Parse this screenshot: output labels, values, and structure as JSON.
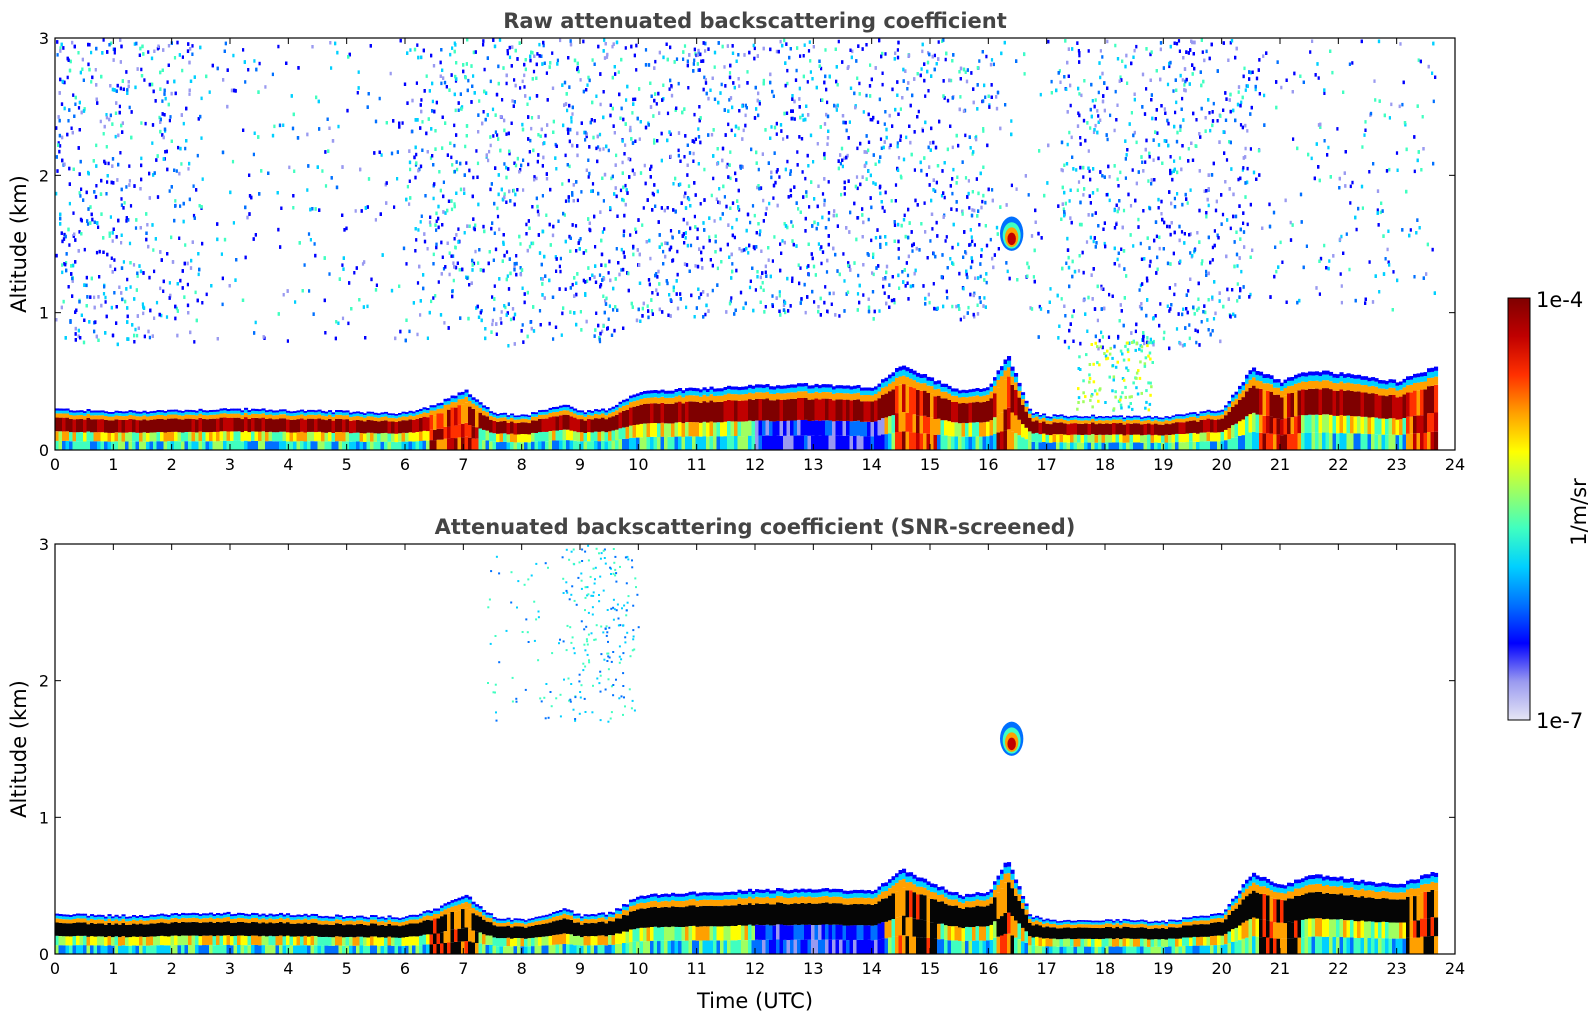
{
  "chart_data": [
    {
      "type": "heatmap",
      "title": "Raw attenuated backscattering coefficient",
      "xlabel": "",
      "ylabel": "Altitude (km)",
      "xlim": [
        0,
        24
      ],
      "ylim": [
        0,
        3
      ],
      "xticks": [
        "0",
        "1",
        "2",
        "3",
        "4",
        "5",
        "6",
        "7",
        "8",
        "9",
        "10",
        "11",
        "12",
        "13",
        "14",
        "15",
        "16",
        "17",
        "18",
        "19",
        "20",
        "21",
        "22",
        "23",
        "24"
      ],
      "yticks": [
        "0",
        "1",
        "2",
        "3"
      ],
      "screened": false,
      "layer_top_km": [
        [
          0,
          0.3
        ],
        [
          1,
          0.28
        ],
        [
          2,
          0.29
        ],
        [
          3,
          0.3
        ],
        [
          4,
          0.29
        ],
        [
          5,
          0.28
        ],
        [
          6,
          0.27
        ],
        [
          6.5,
          0.33
        ],
        [
          7,
          0.44
        ],
        [
          7.5,
          0.27
        ],
        [
          8,
          0.25
        ],
        [
          8.7,
          0.33
        ],
        [
          9,
          0.28
        ],
        [
          9.5,
          0.3
        ],
        [
          10,
          0.43
        ],
        [
          11,
          0.45
        ],
        [
          12,
          0.47
        ],
        [
          13,
          0.48
        ],
        [
          14,
          0.46
        ],
        [
          14.5,
          0.62
        ],
        [
          15,
          0.52
        ],
        [
          15.5,
          0.43
        ],
        [
          16,
          0.46
        ],
        [
          16.3,
          0.7
        ],
        [
          16.7,
          0.28
        ],
        [
          17,
          0.25
        ],
        [
          18,
          0.25
        ],
        [
          19,
          0.24
        ],
        [
          20,
          0.3
        ],
        [
          20.5,
          0.6
        ],
        [
          21,
          0.5
        ],
        [
          21.5,
          0.58
        ],
        [
          22,
          0.56
        ],
        [
          23,
          0.5
        ],
        [
          23.6,
          0.6
        ]
      ],
      "features": [
        {
          "label": "elevated cloud",
          "t": [
            16.2,
            16.6
          ],
          "alt_km": [
            1.45,
            1.7
          ]
        },
        {
          "label": "aerosol plumes",
          "t": [
            17.5,
            18.8
          ],
          "alt_km": [
            0.3,
            0.8
          ]
        }
      ]
    },
    {
      "type": "heatmap",
      "title": "Attenuated backscattering coefficient (SNR-screened)",
      "xlabel": "Time (UTC)",
      "ylabel": "Altitude (km)",
      "xlim": [
        0,
        24
      ],
      "ylim": [
        0,
        3
      ],
      "xticks": [
        "0",
        "1",
        "2",
        "3",
        "4",
        "5",
        "6",
        "7",
        "8",
        "9",
        "10",
        "11",
        "12",
        "13",
        "14",
        "15",
        "16",
        "17",
        "18",
        "19",
        "20",
        "21",
        "22",
        "23",
        "24"
      ],
      "yticks": [
        "0",
        "1",
        "2",
        "3"
      ],
      "screened": true,
      "layer_top_km": [
        [
          0,
          0.3
        ],
        [
          1,
          0.28
        ],
        [
          2,
          0.29
        ],
        [
          3,
          0.3
        ],
        [
          4,
          0.29
        ],
        [
          5,
          0.28
        ],
        [
          6,
          0.27
        ],
        [
          6.5,
          0.33
        ],
        [
          7,
          0.44
        ],
        [
          7.5,
          0.27
        ],
        [
          8,
          0.25
        ],
        [
          8.7,
          0.33
        ],
        [
          9,
          0.28
        ],
        [
          9.5,
          0.3
        ],
        [
          10,
          0.43
        ],
        [
          11,
          0.45
        ],
        [
          12,
          0.47
        ],
        [
          13,
          0.48
        ],
        [
          14,
          0.46
        ],
        [
          14.5,
          0.62
        ],
        [
          15,
          0.52
        ],
        [
          15.5,
          0.43
        ],
        [
          16,
          0.46
        ],
        [
          16.3,
          0.7
        ],
        [
          16.7,
          0.28
        ],
        [
          17,
          0.25
        ],
        [
          18,
          0.25
        ],
        [
          19,
          0.24
        ],
        [
          20,
          0.3
        ],
        [
          20.5,
          0.6
        ],
        [
          21,
          0.5
        ],
        [
          21.5,
          0.58
        ],
        [
          22,
          0.56
        ],
        [
          23,
          0.5
        ],
        [
          23.6,
          0.6
        ]
      ],
      "features": [
        {
          "label": "elevated cloud",
          "t": [
            16.2,
            16.6
          ],
          "alt_km": [
            1.45,
            1.7
          ]
        },
        {
          "label": "sparse high returns",
          "t": [
            8.7,
            9.9
          ],
          "alt_km": [
            1.8,
            3.0
          ]
        }
      ]
    }
  ],
  "colorbar": {
    "label": "1/m/sr",
    "max_label": "1e-4",
    "min_label": "1e-7",
    "scale": "log",
    "colors": [
      "#e6e6f5",
      "#9a9af0",
      "#0000ff",
      "#0070ff",
      "#00d0ff",
      "#40ffc0",
      "#a0ff60",
      "#ffff00",
      "#ffa000",
      "#ff3000",
      "#c00000",
      "#7f0000"
    ]
  }
}
